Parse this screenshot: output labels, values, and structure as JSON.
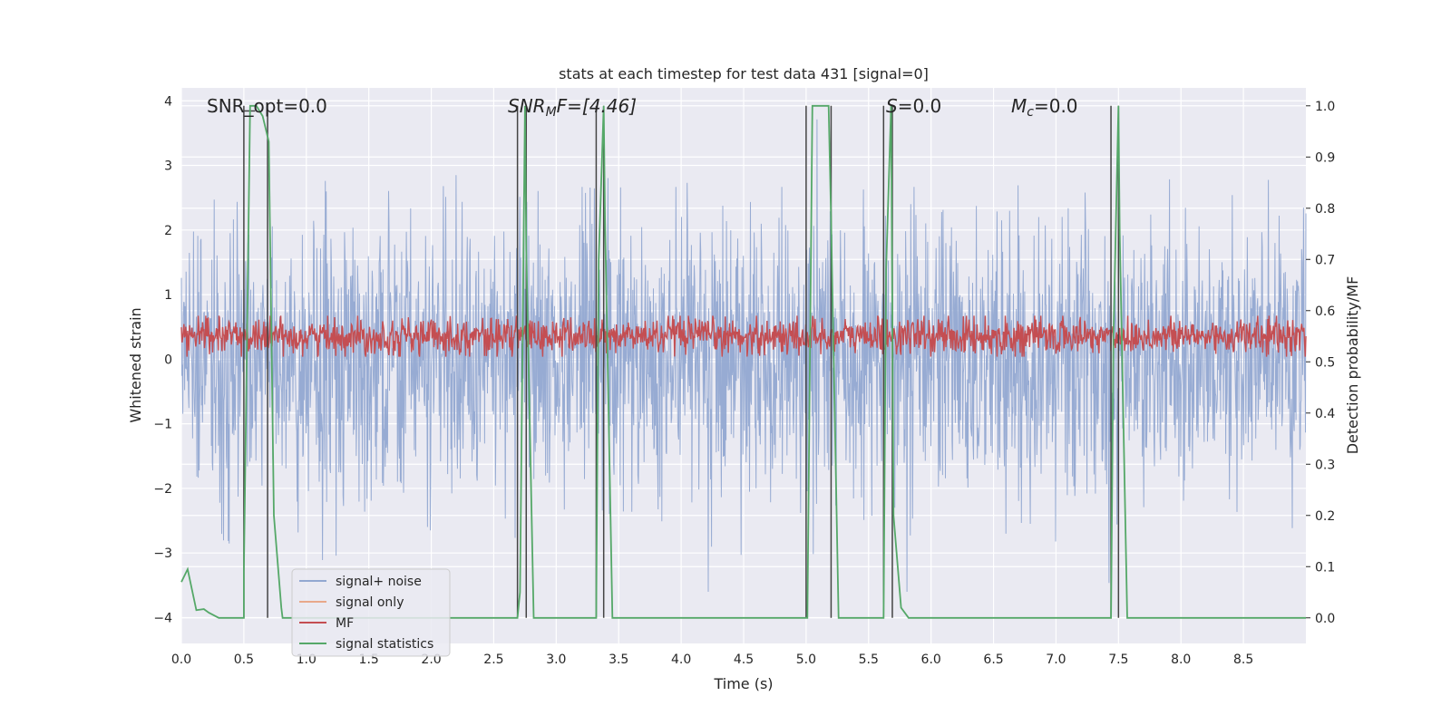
{
  "chart_data": {
    "type": "line",
    "title": "stats at each timestep for test data 431 [signal=0]",
    "xlabel": "Time (s)",
    "ylabel_left": "Whitened strain",
    "ylabel_right": "Detection probability/MF",
    "xlim": [
      0.0,
      9.0
    ],
    "ylim_left": [
      -4.4,
      4.2
    ],
    "ylim_right": [
      -0.05,
      1.035
    ],
    "x_ticks": [
      "0.0",
      "0.5",
      "1.0",
      "1.5",
      "2.0",
      "2.5",
      "3.0",
      "3.5",
      "4.0",
      "4.5",
      "5.0",
      "5.5",
      "6.0",
      "6.5",
      "7.0",
      "7.5",
      "8.0",
      "8.5"
    ],
    "y_ticks_left": [
      "−4",
      "−3",
      "−2",
      "−1",
      "0",
      "1",
      "2",
      "3",
      "4"
    ],
    "y_ticks_right": [
      "0.0",
      "0.1",
      "0.2",
      "0.3",
      "0.4",
      "0.5",
      "0.6",
      "0.7",
      "0.8",
      "0.9",
      "1.0"
    ],
    "grid": true,
    "legend_position": "lower-left",
    "annotations": {
      "snr_opt": "SNR_opt=0.0",
      "snr_mf_main": "SNR",
      "snr_mf_sub": "M",
      "snr_mf_rest": "F=[4.46]",
      "s_main": "S",
      "s_rest": "=0.0",
      "mc_main": "M",
      "mc_sub": "c",
      "mc_rest": "=0.0"
    },
    "series": [
      {
        "name": "signal+ noise",
        "color": "#92a8d1",
        "description_axis": "left",
        "approx_range": [
          -3.6,
          3.8
        ]
      },
      {
        "name": "signal only",
        "color": "#e8a88a",
        "axis": "left",
        "values": []
      },
      {
        "name": "MF",
        "color": "#c44e52",
        "axis": "right",
        "approx_range": [
          0.51,
          0.59
        ]
      },
      {
        "name": "signal statistics",
        "color": "#55a868",
        "axis": "right",
        "x": [
          0.0,
          0.05,
          0.12,
          0.18,
          0.22,
          0.3,
          0.5,
          0.5,
          0.55,
          0.6,
          0.65,
          0.7,
          0.74,
          0.8,
          0.81,
          2.69,
          2.71,
          2.75,
          2.76,
          2.82,
          3.32,
          3.34,
          3.38,
          3.39,
          3.45,
          5.01,
          5.05,
          5.18,
          5.2,
          5.26,
          5.62,
          5.64,
          5.68,
          5.7,
          5.76,
          5.82,
          7.44,
          7.46,
          7.5,
          7.51,
          7.57,
          9.0
        ],
        "y": [
          0.07,
          0.095,
          0.015,
          0.017,
          0.01,
          0.0,
          0.0,
          0.09,
          1.0,
          1.0,
          0.98,
          0.93,
          0.2,
          0.02,
          0.0,
          0.0,
          0.05,
          1.0,
          0.72,
          0.0,
          0.0,
          0.7,
          1.0,
          0.78,
          0.0,
          0.0,
          1.0,
          1.0,
          0.78,
          0.0,
          0.0,
          0.68,
          1.0,
          0.2,
          0.02,
          0.0,
          0.0,
          0.55,
          1.0,
          0.75,
          0.0,
          0.0
        ]
      }
    ],
    "vertical_markers": {
      "color": "#444444",
      "positions": [
        0.5,
        0.69,
        2.69,
        2.76,
        3.32,
        3.38,
        5.0,
        5.2,
        5.62,
        5.69,
        7.44,
        7.5
      ]
    },
    "colors": {
      "background": "#eaeaf2",
      "grid": "#ffffff",
      "text": "#262626"
    }
  }
}
